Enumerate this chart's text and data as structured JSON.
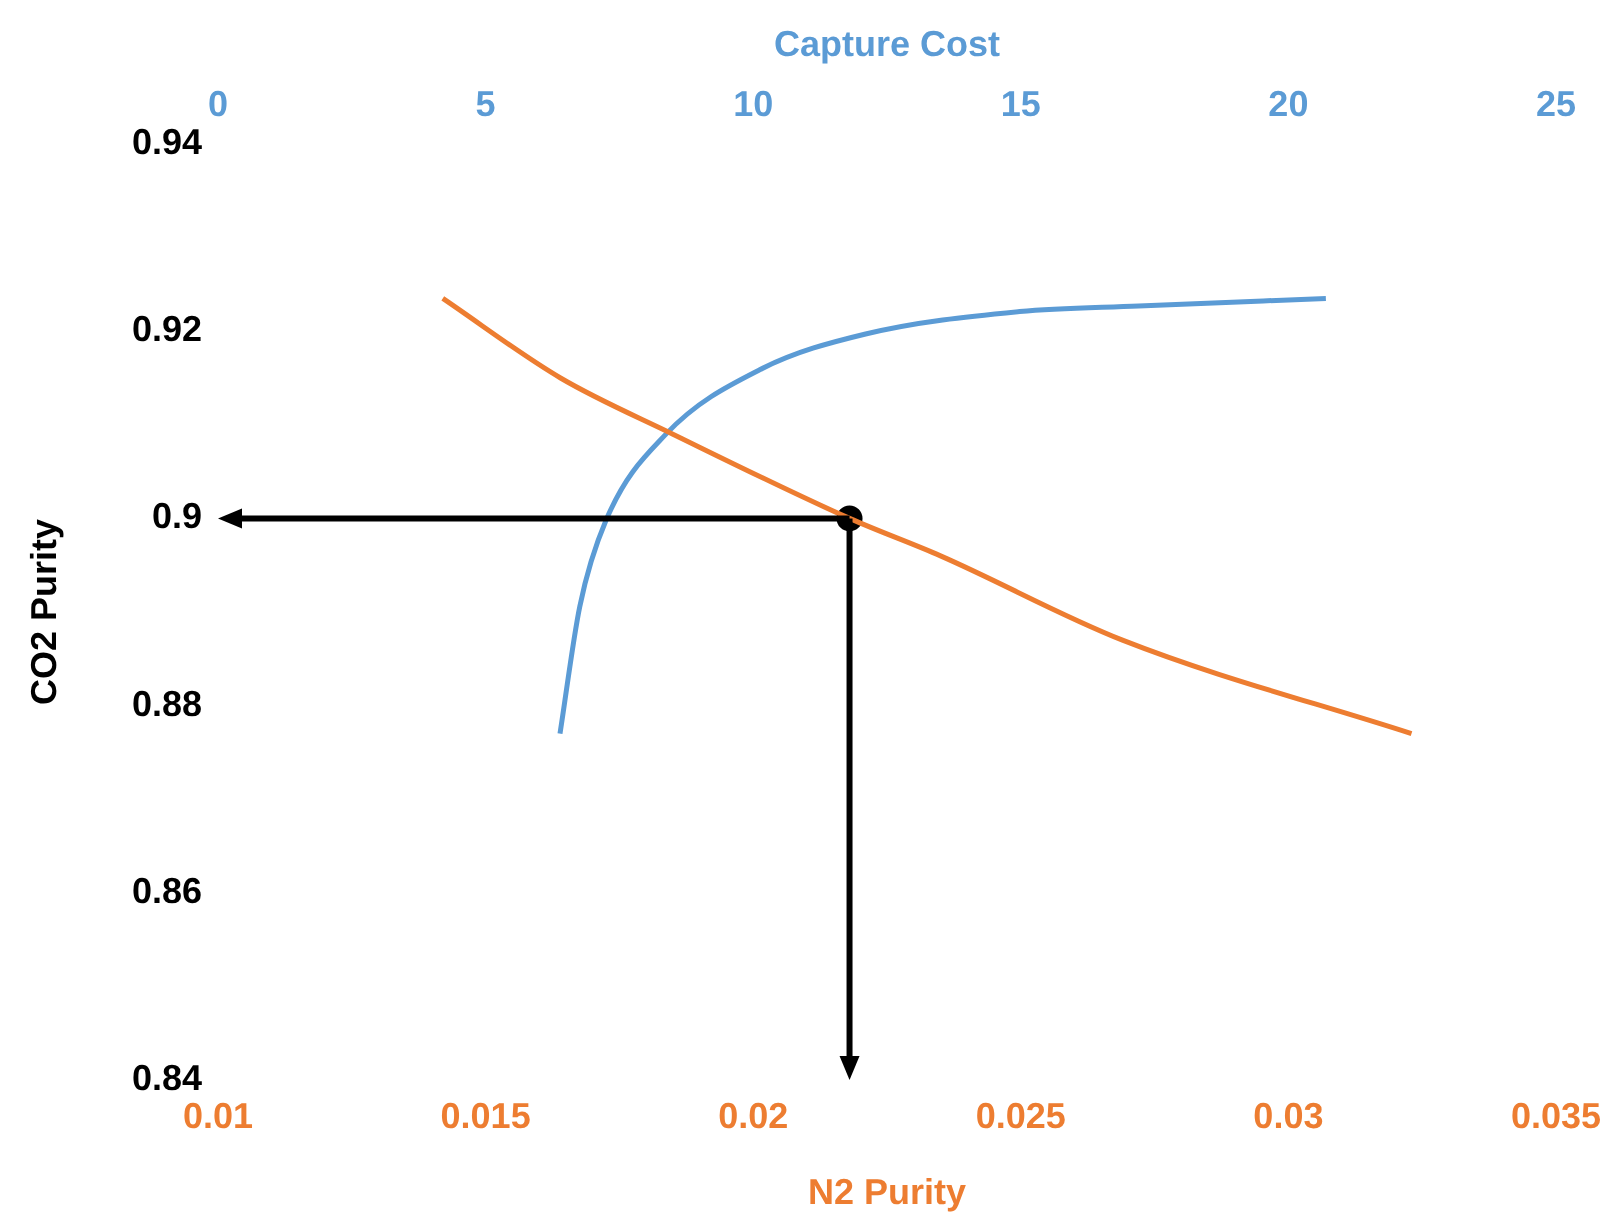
{
  "chart_data": {
    "type": "line",
    "xlabel": "N2 Purity",
    "ylabel": "CO2 Purity",
    "x2label": "Capture Cost",
    "xlim": [
      0.01,
      0.035
    ],
    "xticks": [
      0.01,
      0.015,
      0.02,
      0.025,
      0.03,
      0.035
    ],
    "x2lim": [
      0,
      25
    ],
    "x2ticks": [
      0,
      5,
      10,
      15,
      20,
      25
    ],
    "ylim": [
      0.84,
      0.94
    ],
    "yticks": [
      0.84,
      0.86,
      0.88,
      0.9,
      0.92,
      0.94
    ],
    "grid": false,
    "legend": false,
    "marker": "none",
    "line_style": "solid",
    "series": [
      {
        "type": "line",
        "color": "#ed7d31",
        "x": [
          0.0142,
          0.0164,
          0.0185,
          0.0218,
          0.0235,
          0.0269,
          0.0323
        ],
        "values": [
          0.9235,
          0.915,
          0.909,
          0.9,
          0.896,
          0.887,
          0.877
        ]
      },
      {
        "type": "line",
        "axis": "x2",
        "color": "#5b9bd5",
        "x": [
          6.39,
          6.76,
          7.25,
          8.37,
          10.13,
          12.1,
          14.98,
          17.2,
          20.7
        ],
        "values": [
          0.877,
          0.8906,
          0.8998,
          0.909,
          0.9159,
          0.9197,
          0.9221,
          0.9227,
          0.9235
        ]
      },
      {
        "type": "scatter",
        "marker": "circle",
        "color": "#000000",
        "x": [
          0.0218
        ],
        "values": [
          0.9
        ]
      }
    ]
  }
}
